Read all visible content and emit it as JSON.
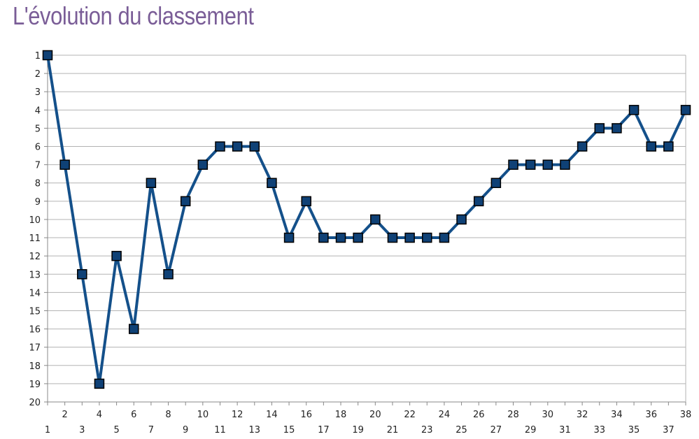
{
  "header": {
    "title": "L'évolution du classement"
  },
  "colors": {
    "title": "#7a5d97",
    "line": "#14508a",
    "marker_fill": "#0f4176",
    "marker_stroke": "#000000",
    "grid": "#b3b3b3",
    "axis": "#888888"
  },
  "chart_data": {
    "type": "line",
    "title": "L'évolution du classement",
    "xlabel": "",
    "ylabel": "",
    "x": [
      1,
      2,
      3,
      4,
      5,
      6,
      7,
      8,
      9,
      10,
      11,
      12,
      13,
      14,
      15,
      16,
      17,
      18,
      19,
      20,
      21,
      22,
      23,
      24,
      25,
      26,
      27,
      28,
      29,
      30,
      31,
      32,
      33,
      34,
      35,
      36,
      37,
      38
    ],
    "series": [
      {
        "values": [
          1,
          7,
          13,
          19,
          12,
          16,
          8,
          13,
          9,
          7,
          6,
          6,
          6,
          8,
          11,
          9,
          11,
          11,
          11,
          10,
          11,
          11,
          11,
          11,
          10,
          9,
          8,
          7,
          7,
          7,
          7,
          6,
          5,
          5,
          4,
          6,
          6,
          4
        ]
      }
    ],
    "ylim": [
      1,
      20
    ],
    "y_inverted": true,
    "y_ticks": [
      1,
      2,
      3,
      4,
      5,
      6,
      7,
      8,
      9,
      10,
      11,
      12,
      13,
      14,
      15,
      16,
      17,
      18,
      19,
      20
    ],
    "x_ticks": [
      1,
      2,
      3,
      4,
      5,
      6,
      7,
      8,
      9,
      10,
      11,
      12,
      13,
      14,
      15,
      16,
      17,
      18,
      19,
      20,
      21,
      22,
      23,
      24,
      25,
      26,
      27,
      28,
      29,
      30,
      31,
      32,
      33,
      34,
      35,
      36,
      37,
      38
    ],
    "grid": true,
    "legend": "none",
    "marker": "square"
  }
}
